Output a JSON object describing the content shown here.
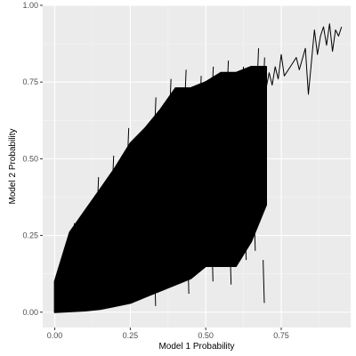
{
  "chart_data": {
    "type": "line",
    "title": "",
    "xlabel": "Model 1 Probability",
    "ylabel": "Model 2 Probability",
    "xlim": [
      -0.04,
      0.98
    ],
    "ylim": [
      -0.05,
      1.0
    ],
    "x_ticks": [
      0.0,
      0.25,
      0.5,
      0.75
    ],
    "x_tick_labels": [
      "0.00",
      "0.25",
      "0.50",
      "0.75"
    ],
    "y_ticks": [
      0.0,
      0.25,
      0.5,
      0.75,
      1.0
    ],
    "y_tick_labels": [
      "0.00",
      "0.25",
      "0.50",
      "0.75",
      "1.00"
    ],
    "grid": true,
    "legend": "none",
    "colors": {
      "panel_background": "#ebebeb",
      "grid_major": "#ffffff",
      "grid_minor": "#f5f5f5",
      "line": "#000000",
      "tick_label": "#4d4d4d"
    },
    "series": [
      {
        "x": [
          0.7,
          0.71,
          0.72,
          0.73,
          0.74,
          0.75,
          0.76,
          0.78,
          0.8,
          0.81,
          0.83,
          0.84,
          0.86,
          0.87,
          0.88,
          0.89,
          0.9,
          0.91,
          0.92,
          0.93,
          0.94,
          0.95
        ],
        "y": [
          0.73,
          0.78,
          0.74,
          0.8,
          0.76,
          0.84,
          0.77,
          0.8,
          0.83,
          0.79,
          0.86,
          0.71,
          0.92,
          0.84,
          0.9,
          0.93,
          0.87,
          0.94,
          0.85,
          0.92,
          0.9,
          0.93
        ]
      }
    ]
  }
}
